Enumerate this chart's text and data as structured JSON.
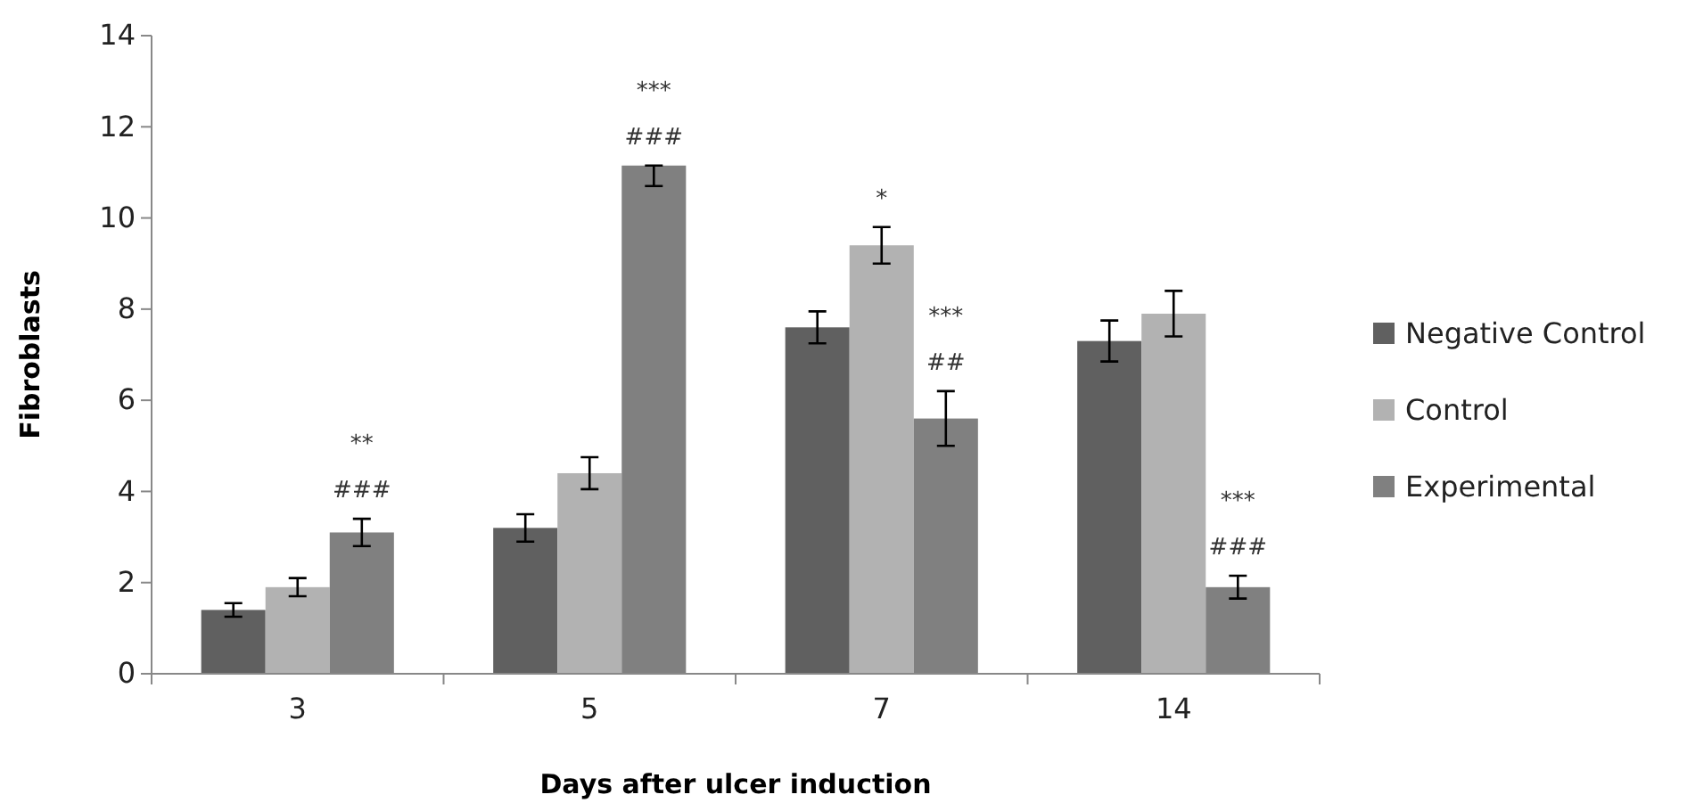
{
  "chart_data": {
    "type": "bar",
    "xlabel": "Days after ulcer induction",
    "ylabel": "Fibroblasts",
    "categories": [
      "3",
      "5",
      "7",
      "14"
    ],
    "series": [
      {
        "name": "Negative Control",
        "color": "#606060",
        "values": [
          1.4,
          3.2,
          7.6,
          7.3
        ],
        "errors": [
          0.15,
          0.3,
          0.35,
          0.45
        ]
      },
      {
        "name": "Control",
        "color": "#b2b2b2",
        "values": [
          1.9,
          4.4,
          9.4,
          7.9
        ],
        "errors": [
          0.2,
          0.35,
          0.4,
          0.5
        ],
        "value_labels": [
          null,
          null,
          "*",
          null
        ]
      },
      {
        "name": "Experimental",
        "color": "#808080",
        "values": [
          3.1,
          11.15,
          5.6,
          1.9
        ],
        "errors": [
          0.3,
          [
            10.7,
            11.15
          ],
          0.6,
          0.25
        ],
        "value_labels": [
          "**\n###",
          "***\n###",
          "***\n##",
          "***\n###"
        ]
      }
    ],
    "ylim": [
      0,
      14
    ],
    "yticks": [
      0,
      2,
      4,
      6,
      8,
      10,
      12,
      14
    ],
    "grid": false,
    "legend": "right"
  }
}
